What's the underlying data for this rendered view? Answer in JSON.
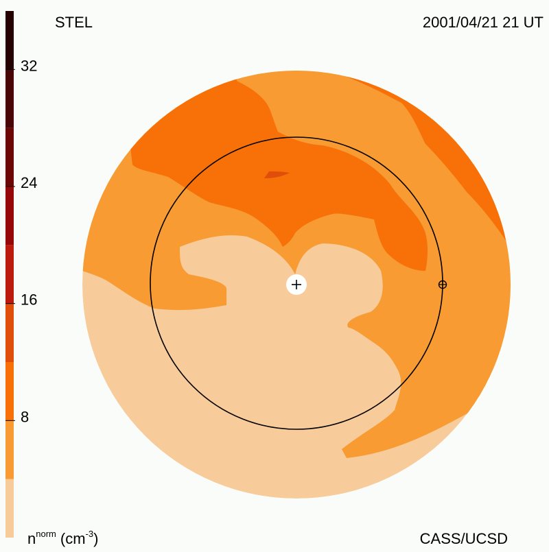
{
  "header": {
    "left_label": "STEL",
    "right_label": "2001/04/21 21 UT"
  },
  "footer": {
    "credit": "CASS/UCSD",
    "quantity": "n",
    "quantity_sup": "norm",
    "unit_open": "(cm",
    "unit_sup": "-3",
    "unit_close": ")"
  },
  "chart_data": {
    "type": "heatmap",
    "title": "",
    "colorbar": {
      "ticks": [
        8,
        16,
        24,
        32
      ],
      "range": [
        0,
        36
      ],
      "bands": [
        {
          "from": 0,
          "to": 4,
          "color": "#f7cb9a"
        },
        {
          "from": 4,
          "to": 8,
          "color": "#f79b32"
        },
        {
          "from": 8,
          "to": 12,
          "color": "#f77108"
        },
        {
          "from": 12,
          "to": 16,
          "color": "#e04e0a"
        },
        {
          "from": 16,
          "to": 20,
          "color": "#bd1a0e"
        },
        {
          "from": 20,
          "to": 24,
          "color": "#960808"
        },
        {
          "from": 24,
          "to": 28,
          "color": "#6c0505"
        },
        {
          "from": 28,
          "to": 32,
          "color": "#480505"
        },
        {
          "from": 32,
          "to": 36,
          "color": "#240202"
        }
      ]
    },
    "map_levels": [
      {
        "level": "0-4",
        "color": "#f7cb9a"
      },
      {
        "level": "4-8",
        "color": "#f79b32"
      },
      {
        "level": "8-12",
        "color": "#f77108"
      },
      {
        "level": "12-16",
        "color": "#e04e0a"
      }
    ],
    "markers": [
      "sun-center",
      "earth"
    ],
    "reference_circle": "Earth orbit"
  }
}
